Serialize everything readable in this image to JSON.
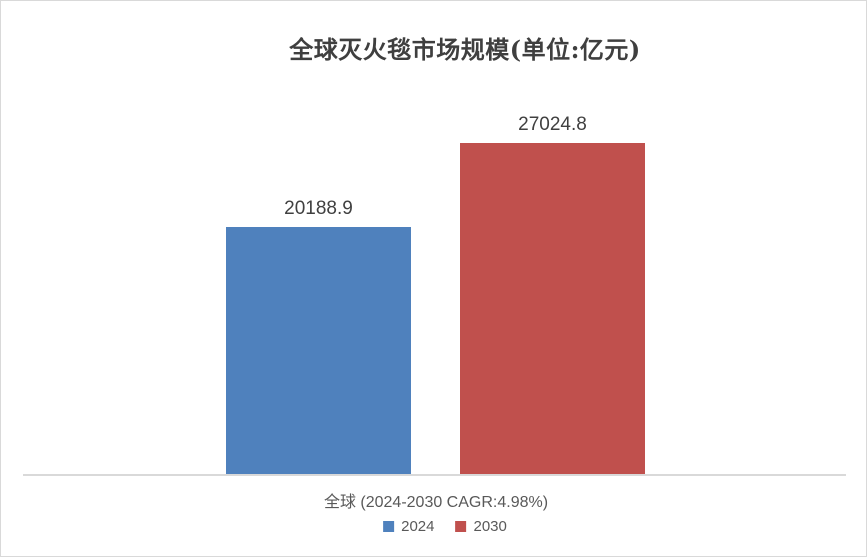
{
  "chart_data": {
    "type": "bar",
    "title": "全球灭火毯市场规模(单位:亿元)",
    "categories": [
      "全球 (2024-2030 CAGR:4.98%)"
    ],
    "series": [
      {
        "name": "2024",
        "values": [
          20188.9
        ],
        "color": "#4F81BD"
      },
      {
        "name": "2030",
        "values": [
          27024.8
        ],
        "color": "#C0504D"
      }
    ],
    "ylim": [
      0,
      30000
    ],
    "grid": false,
    "data_labels": true,
    "legend_position": "bottom",
    "axis_line_color": "#D9D9D9",
    "title_color": "#3F3F3F",
    "label_color": "#404040",
    "axis_text_color": "#595959"
  }
}
